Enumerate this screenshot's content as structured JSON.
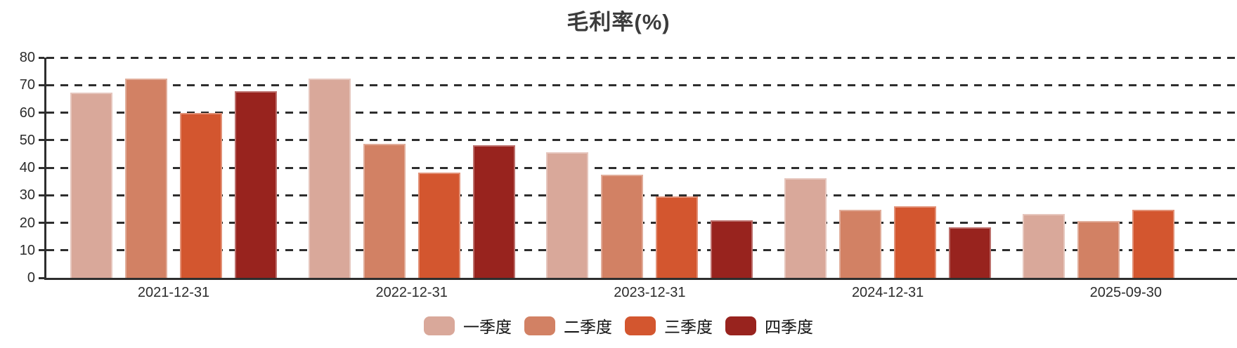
{
  "chart_data": {
    "type": "bar",
    "title": "毛利率(%)",
    "ylabel": "",
    "xlabel": "",
    "ylim": [
      0,
      80
    ],
    "yticks": [
      0,
      10,
      20,
      30,
      40,
      50,
      60,
      70,
      80
    ],
    "grid": "horizontal-dashed",
    "legend_position": "bottom-center",
    "axis_color": "#2e2e2e",
    "text_color": "#2b2b2b",
    "categories": [
      "2021-12-31",
      "2022-12-31",
      "2023-12-31",
      "2024-12-31",
      "2025-09-30"
    ],
    "series": [
      {
        "name": "一季度",
        "color": "#D9A89A",
        "values": [
          67.2,
          72.3,
          45.6,
          36.1,
          23.1
        ]
      },
      {
        "name": "二季度",
        "color": "#D28164",
        "values": [
          72.4,
          48.6,
          37.4,
          24.8,
          20.7
        ]
      },
      {
        "name": "三季度",
        "color": "#D3562F",
        "values": [
          60.0,
          38.3,
          29.6,
          26.0,
          24.8
        ]
      },
      {
        "name": "四季度",
        "color": "#98231E",
        "values": [
          67.9,
          48.2,
          20.9,
          18.4,
          null
        ]
      }
    ]
  }
}
